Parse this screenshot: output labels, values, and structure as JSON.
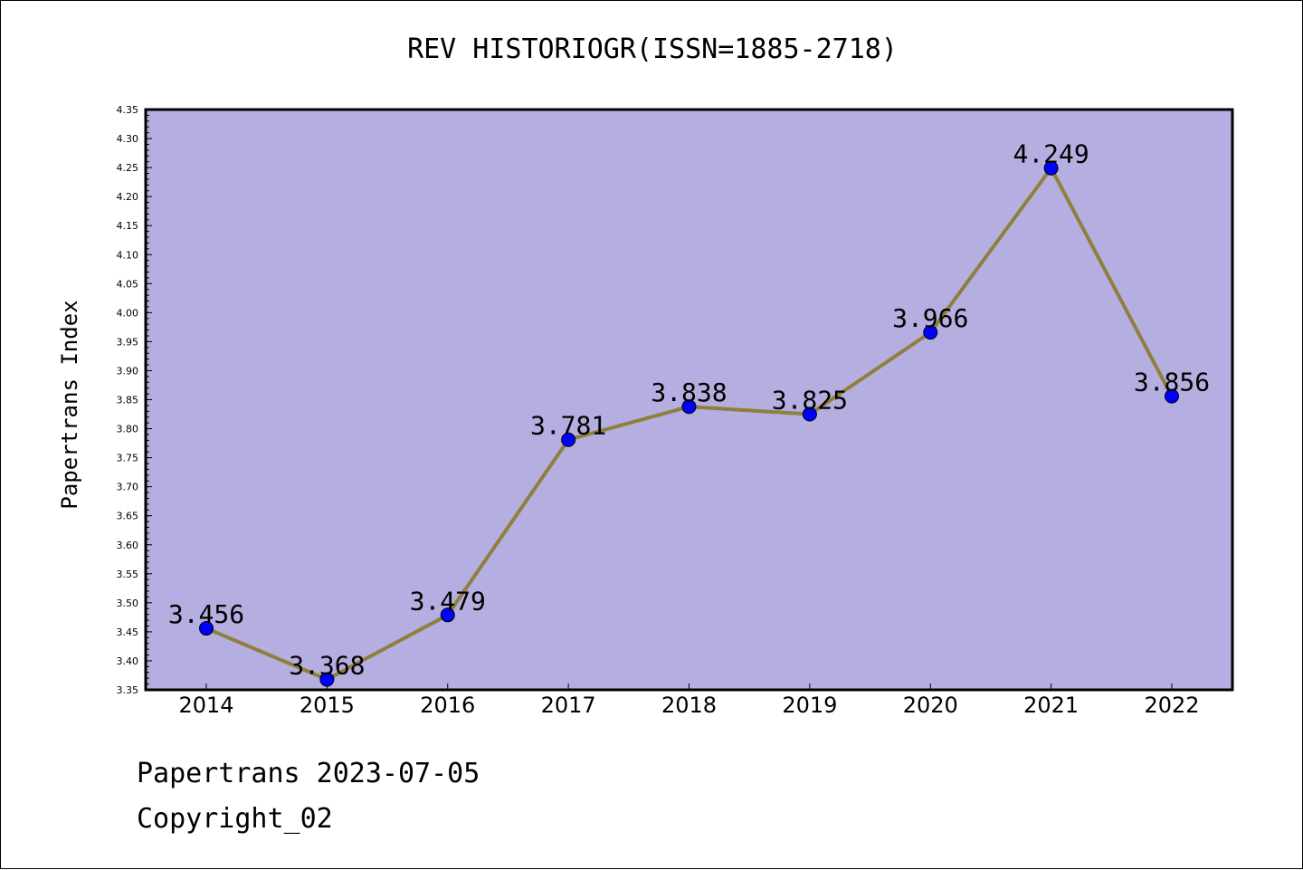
{
  "chart_data": {
    "type": "line",
    "title": "REV HISTORIOGR(ISSN=1885-2718)",
    "xlabel": "",
    "ylabel": "Papertrans Index",
    "categories": [
      "2014",
      "2015",
      "2016",
      "2017",
      "2018",
      "2019",
      "2020",
      "2021",
      "2022"
    ],
    "series": [
      {
        "values": [
          3.456,
          3.368,
          3.479,
          3.781,
          3.838,
          3.825,
          3.966,
          4.249,
          3.856
        ]
      }
    ],
    "data_labels": [
      "3.456",
      "3.368",
      "3.479",
      "3.781",
      "3.838",
      "3.825",
      "3.966",
      "4.249",
      "3.856"
    ],
    "ylim": [
      3.35,
      4.35
    ],
    "yticks": [
      "3.35",
      "3.40",
      "3.45",
      "3.50",
      "3.55",
      "3.60",
      "3.65",
      "3.70",
      "3.75",
      "3.80",
      "3.85",
      "3.90",
      "3.95",
      "4.00",
      "4.05",
      "4.10",
      "4.15",
      "4.20",
      "4.25",
      "4.30",
      "4.35"
    ],
    "grid": false,
    "legend": "none",
    "colors": {
      "plot_background": "#b5aee0",
      "line": "#8f7f3d",
      "marker": "#0000ff"
    }
  },
  "footer": {
    "date_text": "Papertrans 2023-07-05",
    "copyright_text": "Copyright_02"
  }
}
